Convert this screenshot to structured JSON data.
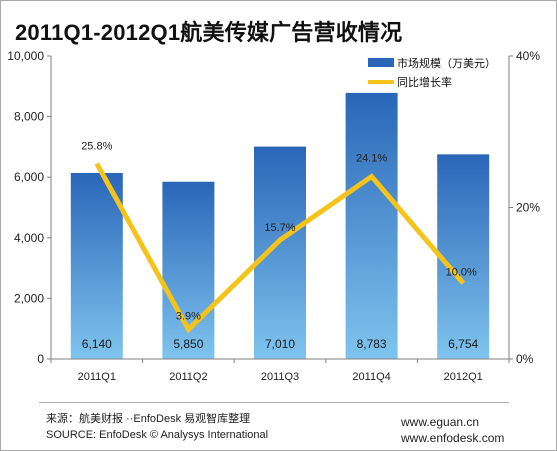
{
  "title": "2011Q1-2012Q1航美传媒广告营收情况",
  "legend": {
    "bar_label": "市场规模（万美元）",
    "line_label": "同比增长率",
    "position": "top-right"
  },
  "colors": {
    "bar_top": "#2a66b8",
    "bar_bottom": "#7fc4ee",
    "line": "#f5c31a",
    "axis": "#7f7f7f",
    "text": "#222222"
  },
  "chart_data": {
    "type": "bar",
    "title": "2011Q1-2012Q1航美传媒广告营收情况",
    "categories": [
      "2011Q1",
      "2011Q2",
      "2011Q3",
      "2011Q4",
      "2012Q1"
    ],
    "series": [
      {
        "name": "市场规模（万美元）",
        "type": "bar",
        "axis": "left",
        "values": [
          6140,
          5850,
          7010,
          8783,
          6754
        ],
        "labels": [
          "6,140",
          "5,850",
          "7,010",
          "8,783",
          "6,754"
        ]
      },
      {
        "name": "同比增长率",
        "type": "line",
        "axis": "right",
        "values": [
          25.8,
          3.9,
          15.7,
          24.1,
          10.0
        ],
        "labels": [
          "25.8%",
          "3.9%",
          "15.7%",
          "24.1%",
          "10.0%"
        ]
      }
    ],
    "ylim_left": [
      0,
      10000
    ],
    "yticks_left": [
      "0",
      "2,000",
      "4,000",
      "6,000",
      "8,000",
      "10,000"
    ],
    "ylim_right": [
      0,
      40
    ],
    "yticks_right": [
      "0%",
      "20%",
      "40%"
    ],
    "grid": false
  },
  "footer": {
    "source_cn": "来源：航美财报 ··EnfoDesk 易观智库整理",
    "source_en": "SOURCE: EnfoDesk © Analysys International",
    "site1": "www.eguan.cn",
    "site2": "www.enfodesk.com"
  }
}
